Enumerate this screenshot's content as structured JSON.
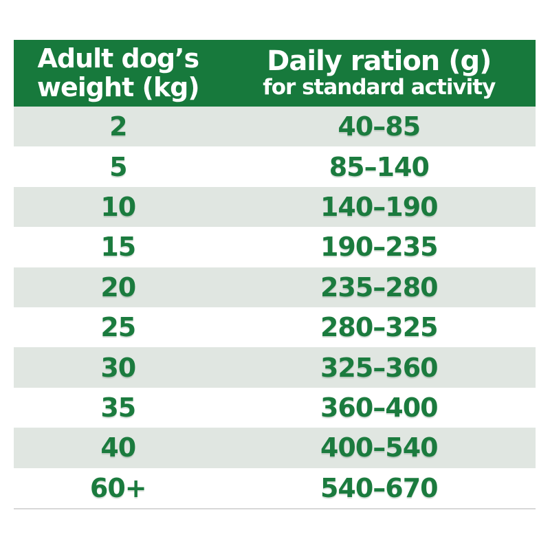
{
  "table": {
    "header": {
      "weight_line1": "Adult dog’s",
      "weight_line2": "weight (kg)",
      "ration_title": "Daily ration (g)",
      "ration_subtitle": "for standard activity"
    },
    "rows": [
      {
        "weight": "2",
        "ration": "40–85"
      },
      {
        "weight": "5",
        "ration": "85–140"
      },
      {
        "weight": "10",
        "ration": "140–190"
      },
      {
        "weight": "15",
        "ration": "190–235"
      },
      {
        "weight": "20",
        "ration": "235–280"
      },
      {
        "weight": "25",
        "ration": "280–325"
      },
      {
        "weight": "30",
        "ration": "325–360"
      },
      {
        "weight": "35",
        "ration": "360–400"
      },
      {
        "weight": "40",
        "ration": "400–540"
      },
      {
        "weight": "60+",
        "ration": "540–670"
      }
    ],
    "colors": {
      "header_bg": "#17793c",
      "header_text": "#ffffff",
      "row_bg": "#ffffff",
      "row_alt_bg": "#e0e6e1",
      "cell_text": "#1b7b3e",
      "bottom_border": "#d8d8d8"
    }
  }
}
